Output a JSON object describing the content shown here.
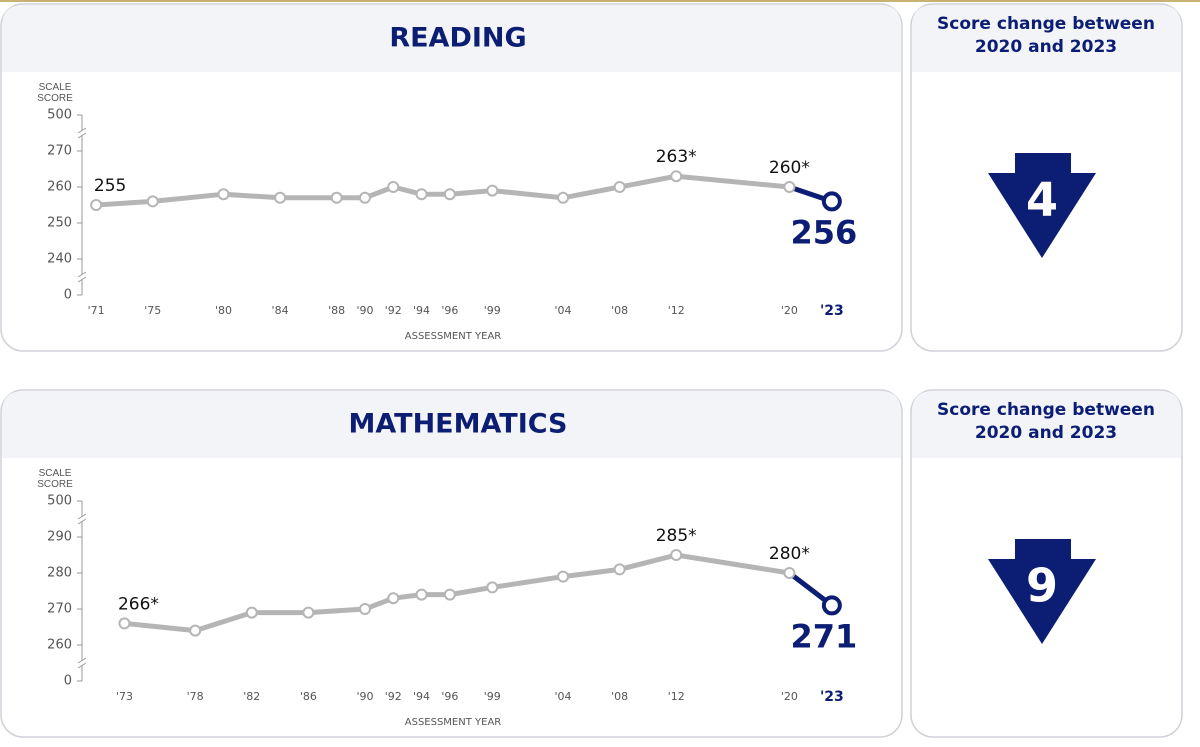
{
  "chart_data": [
    {
      "type": "line",
      "title": "READING",
      "ylabel": "SCALE SCORE",
      "xlabel": "ASSESSMENT YEAR",
      "x": [
        1971,
        1975,
        1980,
        1984,
        1988,
        1990,
        1992,
        1994,
        1996,
        1999,
        2004,
        2008,
        2012,
        2020,
        2023
      ],
      "values": [
        255,
        256,
        258,
        257,
        257,
        257,
        260,
        258,
        258,
        259,
        257,
        260,
        263,
        260,
        256
      ],
      "value_labels": [
        "255",
        null,
        null,
        null,
        null,
        null,
        null,
        null,
        null,
        null,
        null,
        null,
        "263*",
        "260*",
        "256"
      ],
      "color": "#b5b5b5",
      "highlight_color": "#0c1d74",
      "xlim": [
        1970,
        2024
      ],
      "xticks": [
        {
          "value": 1971,
          "label": "'71"
        },
        {
          "value": 1975,
          "label": "'75"
        },
        {
          "value": 1980,
          "label": "'80"
        },
        {
          "value": 1984,
          "label": "'84"
        },
        {
          "value": 1988,
          "label": "'88"
        },
        {
          "value": 1990,
          "label": "'90"
        },
        {
          "value": 1992,
          "label": "'92"
        },
        {
          "value": 1994,
          "label": "'94"
        },
        {
          "value": 1996,
          "label": "'96"
        },
        {
          "value": 1999,
          "label": "'99"
        },
        {
          "value": 2004,
          "label": "'04"
        },
        {
          "value": 2008,
          "label": "'08"
        },
        {
          "value": 2012,
          "label": "'12"
        },
        {
          "value": 2020,
          "label": "'20"
        },
        {
          "value": 2023,
          "label": "'23"
        }
      ],
      "ylim": [
        0,
        500
      ],
      "yticks": [
        0,
        240,
        250,
        260,
        270,
        500
      ],
      "ybreak": true,
      "side_title": "Score change between 2020 and 2023",
      "change": 4
    },
    {
      "type": "line",
      "title": "MATHEMATICS",
      "ylabel": "SCALE SCORE",
      "xlabel": "ASSESSMENT YEAR",
      "x": [
        1973,
        1978,
        1982,
        1986,
        1990,
        1992,
        1994,
        1996,
        1999,
        2004,
        2008,
        2012,
        2020,
        2023
      ],
      "values": [
        266,
        264,
        269,
        269,
        270,
        273,
        274,
        274,
        276,
        279,
        281,
        285,
        280,
        271
      ],
      "value_labels": [
        "266*",
        null,
        null,
        null,
        null,
        null,
        null,
        null,
        null,
        null,
        null,
        "285*",
        "280*",
        "271"
      ],
      "color": "#b5b5b5",
      "highlight_color": "#0c1d74",
      "xlim": [
        1970,
        2024
      ],
      "xticks": [
        {
          "value": 1973,
          "label": "'73"
        },
        {
          "value": 1978,
          "label": "'78"
        },
        {
          "value": 1982,
          "label": "'82"
        },
        {
          "value": 1986,
          "label": "'86"
        },
        {
          "value": 1990,
          "label": "'90"
        },
        {
          "value": 1992,
          "label": "'92"
        },
        {
          "value": 1994,
          "label": "'94"
        },
        {
          "value": 1996,
          "label": "'96"
        },
        {
          "value": 1999,
          "label": "'99"
        },
        {
          "value": 2004,
          "label": "'04"
        },
        {
          "value": 2008,
          "label": "'08"
        },
        {
          "value": 2012,
          "label": "'12"
        },
        {
          "value": 2020,
          "label": "'20"
        },
        {
          "value": 2023,
          "label": "'23"
        }
      ],
      "ylim": [
        0,
        500
      ],
      "yticks": [
        0,
        260,
        270,
        280,
        290,
        500
      ],
      "ybreak": true,
      "side_title": "Score change between 2020 and 2023",
      "change": 9
    }
  ]
}
